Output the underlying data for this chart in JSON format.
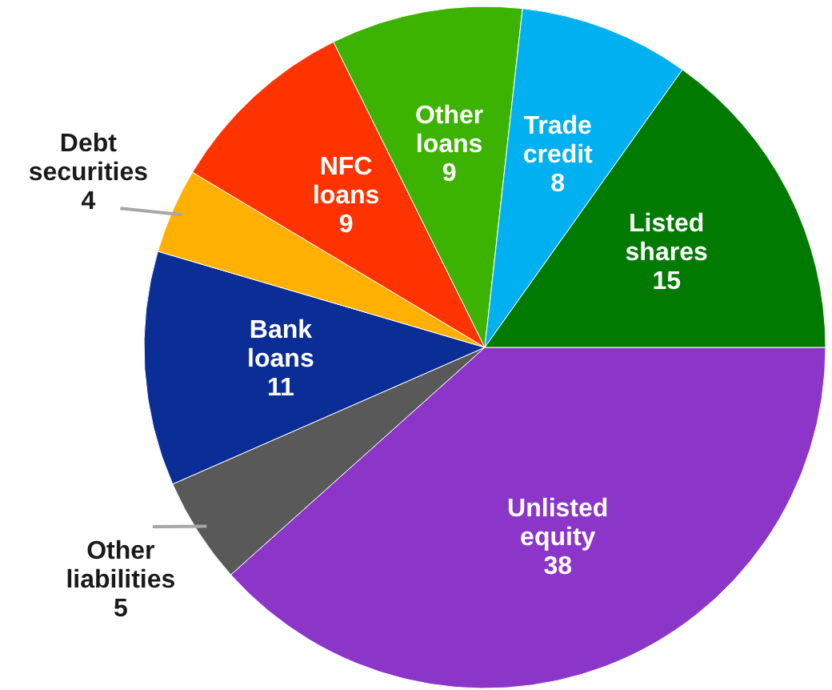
{
  "chart_data": {
    "type": "pie",
    "categories": [
      "Unlisted equity",
      "Other liabilities",
      "Bank loans",
      "Debt securities",
      "NFC loans",
      "Other loans",
      "Trade credit",
      "Listed shares"
    ],
    "values": [
      38,
      5,
      11,
      4,
      9,
      9,
      8,
      15
    ],
    "colors": [
      "#8b35c9",
      "#595959",
      "#0a2d96",
      "#ffb000",
      "#ff3300",
      "#3cb300",
      "#00b0f0",
      "#007a00"
    ],
    "data_labels": true
  }
}
